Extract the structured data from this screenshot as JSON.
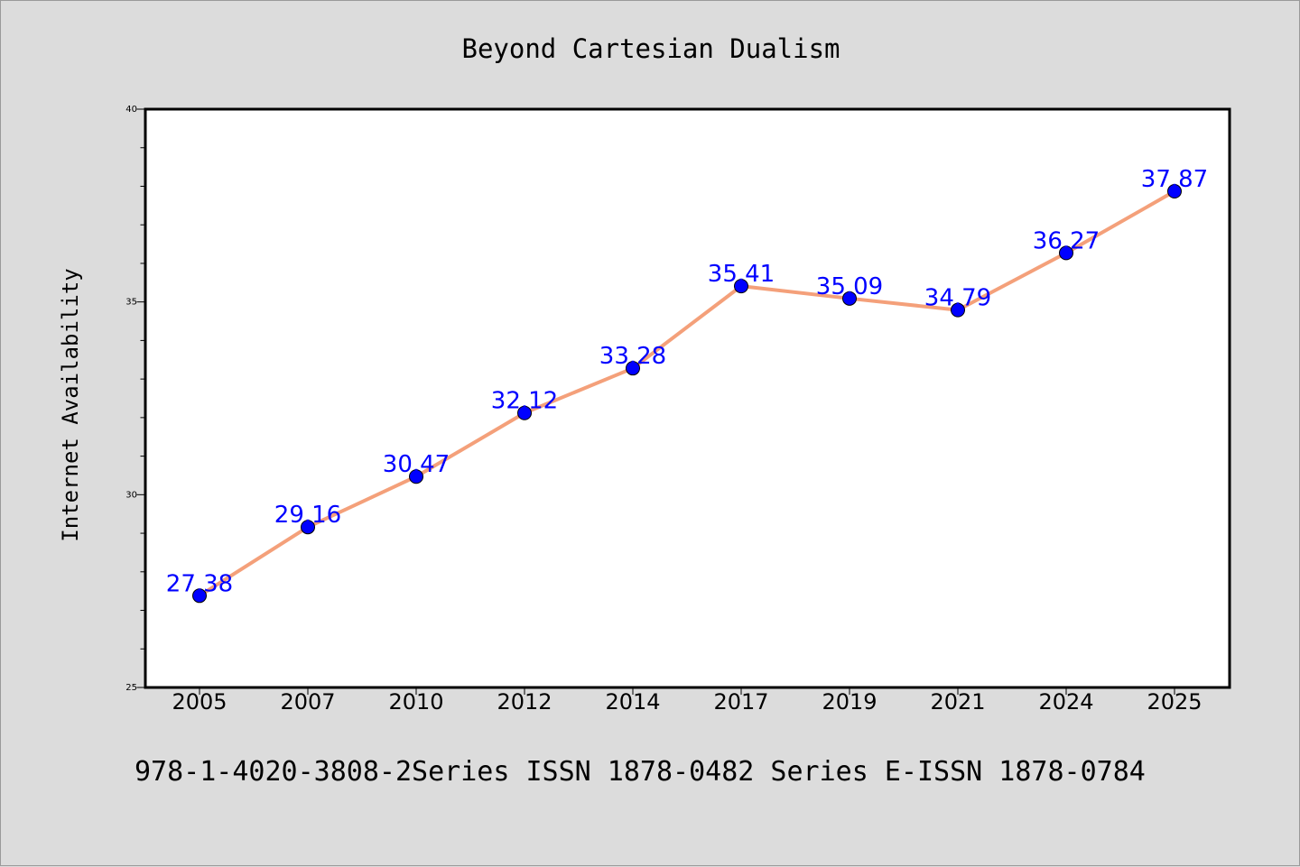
{
  "chart_data": {
    "type": "line",
    "title": "Beyond Cartesian Dualism",
    "xlabel": "",
    "ylabel": "Internet Availability",
    "categories": [
      "2005",
      "2007",
      "2010",
      "2012",
      "2014",
      "2017",
      "2019",
      "2021",
      "2024",
      "2025"
    ],
    "series": [
      {
        "values": [
          27.38,
          29.16,
          30.47,
          32.12,
          33.28,
          35.41,
          35.09,
          34.79,
          36.27,
          37.87
        ],
        "labels": [
          "27.38",
          "29.16",
          "30.47",
          "32.12",
          "33.28",
          "35.41",
          "35.09",
          "34.79",
          "36.27",
          "37.87"
        ],
        "line_color": "#f4a07a",
        "marker_color": "#0000ff"
      }
    ],
    "ylim": [
      25,
      40
    ],
    "yticks": [
      "25",
      "30",
      "35",
      "40"
    ],
    "grid": false,
    "legend": "none"
  },
  "footer": {
    "text": "978-1-4020-3808-2Series ISSN 1878-0482 Series E-ISSN 1878-0784"
  }
}
